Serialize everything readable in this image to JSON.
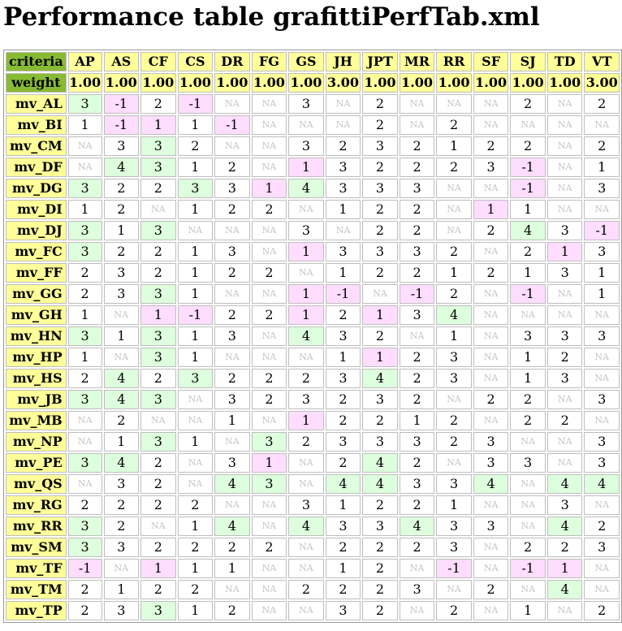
{
  "title": "Performance table grafittiPerfTab.xml",
  "table": {
    "criteria_label": "criteria",
    "weight_label": "weight",
    "criteria": [
      "AP",
      "AS",
      "CF",
      "CS",
      "DR",
      "FG",
      "GS",
      "JH",
      "JPT",
      "MR",
      "RR",
      "SF",
      "SJ",
      "TD",
      "VT"
    ],
    "weights": [
      "1.00",
      "1.00",
      "1.00",
      "1.00",
      "1.00",
      "1.00",
      "1.00",
      "3.00",
      "1.00",
      "1.00",
      "1.00",
      "1.00",
      "1.00",
      "1.00",
      "3.00"
    ],
    "rows": [
      {
        "label": "mv_AL",
        "values": [
          "3",
          "-1",
          "2",
          "-1",
          "NA",
          "NA",
          "3",
          "NA",
          "2",
          "NA",
          "NA",
          "NA",
          "2",
          "NA",
          "2"
        ]
      },
      {
        "label": "mv_BI",
        "values": [
          "1",
          "-1",
          "1",
          "1",
          "-1",
          "NA",
          "NA",
          "NA",
          "2",
          "NA",
          "2",
          "NA",
          "NA",
          "NA",
          "NA"
        ]
      },
      {
        "label": "mv_CM",
        "values": [
          "NA",
          "3",
          "3",
          "2",
          "NA",
          "NA",
          "3",
          "2",
          "3",
          "2",
          "1",
          "2",
          "2",
          "NA",
          "2"
        ]
      },
      {
        "label": "mv_DF",
        "values": [
          "NA",
          "4",
          "3",
          "1",
          "2",
          "NA",
          "1",
          "3",
          "2",
          "2",
          "2",
          "3",
          "-1",
          "NA",
          "1"
        ]
      },
      {
        "label": "mv_DG",
        "values": [
          "3",
          "2",
          "2",
          "3",
          "3",
          "1",
          "4",
          "3",
          "3",
          "3",
          "NA",
          "NA",
          "-1",
          "NA",
          "3"
        ]
      },
      {
        "label": "mv_DI",
        "values": [
          "1",
          "2",
          "NA",
          "1",
          "2",
          "2",
          "NA",
          "1",
          "2",
          "2",
          "NA",
          "1",
          "1",
          "NA",
          "NA"
        ]
      },
      {
        "label": "mv_DJ",
        "values": [
          "3",
          "1",
          "3",
          "NA",
          "NA",
          "NA",
          "3",
          "NA",
          "2",
          "2",
          "NA",
          "2",
          "4",
          "3",
          "-1"
        ]
      },
      {
        "label": "mv_FC",
        "values": [
          "3",
          "2",
          "2",
          "1",
          "3",
          "NA",
          "1",
          "3",
          "3",
          "3",
          "2",
          "NA",
          "2",
          "1",
          "3"
        ]
      },
      {
        "label": "mv_FF",
        "values": [
          "2",
          "3",
          "2",
          "1",
          "2",
          "2",
          "NA",
          "1",
          "2",
          "2",
          "1",
          "2",
          "1",
          "3",
          "1"
        ]
      },
      {
        "label": "mv_GG",
        "values": [
          "2",
          "3",
          "3",
          "1",
          "NA",
          "NA",
          "1",
          "-1",
          "NA",
          "-1",
          "2",
          "NA",
          "-1",
          "NA",
          "1"
        ]
      },
      {
        "label": "mv_GH",
        "values": [
          "1",
          "NA",
          "1",
          "-1",
          "2",
          "2",
          "1",
          "2",
          "1",
          "3",
          "4",
          "NA",
          "NA",
          "NA",
          "NA"
        ]
      },
      {
        "label": "mv_HN",
        "values": [
          "3",
          "1",
          "3",
          "1",
          "3",
          "NA",
          "4",
          "3",
          "2",
          "NA",
          "1",
          "NA",
          "3",
          "3",
          "3"
        ]
      },
      {
        "label": "mv_HP",
        "values": [
          "1",
          "NA",
          "3",
          "1",
          "NA",
          "NA",
          "NA",
          "1",
          "1",
          "2",
          "3",
          "NA",
          "1",
          "2",
          "NA"
        ]
      },
      {
        "label": "mv_HS",
        "values": [
          "2",
          "4",
          "2",
          "3",
          "2",
          "2",
          "2",
          "3",
          "4",
          "2",
          "3",
          "NA",
          "1",
          "3",
          "NA"
        ]
      },
      {
        "label": "mv_JB",
        "values": [
          "3",
          "4",
          "3",
          "NA",
          "3",
          "2",
          "3",
          "2",
          "3",
          "2",
          "NA",
          "2",
          "2",
          "NA",
          "3"
        ]
      },
      {
        "label": "mv_MB",
        "values": [
          "NA",
          "2",
          "NA",
          "NA",
          "1",
          "NA",
          "1",
          "2",
          "2",
          "1",
          "2",
          "NA",
          "2",
          "2",
          "NA"
        ]
      },
      {
        "label": "mv_NP",
        "values": [
          "NA",
          "1",
          "3",
          "1",
          "NA",
          "3",
          "2",
          "3",
          "3",
          "3",
          "2",
          "3",
          "NA",
          "NA",
          "3"
        ]
      },
      {
        "label": "mv_PE",
        "values": [
          "3",
          "4",
          "2",
          "NA",
          "3",
          "1",
          "NA",
          "2",
          "4",
          "2",
          "NA",
          "3",
          "3",
          "NA",
          "3"
        ]
      },
      {
        "label": "mv_QS",
        "values": [
          "NA",
          "3",
          "2",
          "NA",
          "4",
          "3",
          "NA",
          "4",
          "4",
          "3",
          "3",
          "4",
          "NA",
          "4",
          "4"
        ]
      },
      {
        "label": "mv_RG",
        "values": [
          "2",
          "2",
          "2",
          "2",
          "NA",
          "NA",
          "3",
          "1",
          "2",
          "2",
          "1",
          "NA",
          "NA",
          "3",
          "NA"
        ]
      },
      {
        "label": "mv_RR",
        "values": [
          "3",
          "2",
          "NA",
          "1",
          "4",
          "NA",
          "4",
          "3",
          "3",
          "4",
          "3",
          "3",
          "NA",
          "4",
          "2"
        ]
      },
      {
        "label": "mv_SM",
        "values": [
          "3",
          "3",
          "2",
          "2",
          "2",
          "2",
          "NA",
          "2",
          "2",
          "2",
          "3",
          "NA",
          "2",
          "2",
          "3"
        ]
      },
      {
        "label": "mv_TF",
        "values": [
          "-1",
          "NA",
          "1",
          "1",
          "1",
          "NA",
          "NA",
          "1",
          "2",
          "NA",
          "-1",
          "NA",
          "-1",
          "1",
          "NA"
        ]
      },
      {
        "label": "mv_TM",
        "values": [
          "2",
          "1",
          "2",
          "2",
          "NA",
          "NA",
          "2",
          "2",
          "2",
          "3",
          "NA",
          "2",
          "NA",
          "4",
          "NA"
        ]
      },
      {
        "label": "mv_TP",
        "values": [
          "2",
          "3",
          "3",
          "1",
          "2",
          "NA",
          "NA",
          "3",
          "2",
          "NA",
          "2",
          "NA",
          "1",
          "NA",
          "2"
        ]
      }
    ],
    "highlight": {
      "best": [
        [
          "mv_AL",
          "AP"
        ],
        [
          "mv_CM",
          "CF"
        ],
        [
          "mv_DF",
          "AS"
        ],
        [
          "mv_DF",
          "CF"
        ],
        [
          "mv_DG",
          "AP"
        ],
        [
          "mv_DG",
          "CS"
        ],
        [
          "mv_DG",
          "GS"
        ],
        [
          "mv_DJ",
          "AP"
        ],
        [
          "mv_DJ",
          "CF"
        ],
        [
          "mv_DJ",
          "SJ"
        ],
        [
          "mv_FC",
          "AP"
        ],
        [
          "mv_GG",
          "CF"
        ],
        [
          "mv_GH",
          "RR"
        ],
        [
          "mv_HN",
          "AP"
        ],
        [
          "mv_HN",
          "CF"
        ],
        [
          "mv_HN",
          "GS"
        ],
        [
          "mv_HP",
          "CF"
        ],
        [
          "mv_HS",
          "AS"
        ],
        [
          "mv_HS",
          "CS"
        ],
        [
          "mv_HS",
          "JPT"
        ],
        [
          "mv_JB",
          "AP"
        ],
        [
          "mv_JB",
          "AS"
        ],
        [
          "mv_JB",
          "CF"
        ],
        [
          "mv_NP",
          "CF"
        ],
        [
          "mv_NP",
          "FG"
        ],
        [
          "mv_PE",
          "AP"
        ],
        [
          "mv_PE",
          "AS"
        ],
        [
          "mv_PE",
          "JPT"
        ],
        [
          "mv_QS",
          "DR"
        ],
        [
          "mv_QS",
          "FG"
        ],
        [
          "mv_QS",
          "JH"
        ],
        [
          "mv_QS",
          "JPT"
        ],
        [
          "mv_QS",
          "SF"
        ],
        [
          "mv_QS",
          "TD"
        ],
        [
          "mv_QS",
          "VT"
        ],
        [
          "mv_RR",
          "AP"
        ],
        [
          "mv_RR",
          "DR"
        ],
        [
          "mv_RR",
          "GS"
        ],
        [
          "mv_RR",
          "MR"
        ],
        [
          "mv_RR",
          "TD"
        ],
        [
          "mv_SM",
          "AP"
        ],
        [
          "mv_TM",
          "TD"
        ],
        [
          "mv_TP",
          "CF"
        ]
      ],
      "worst": [
        [
          "mv_AL",
          "AS"
        ],
        [
          "mv_AL",
          "CS"
        ],
        [
          "mv_BI",
          "AS"
        ],
        [
          "mv_BI",
          "CF"
        ],
        [
          "mv_BI",
          "DR"
        ],
        [
          "mv_DF",
          "GS"
        ],
        [
          "mv_DF",
          "SJ"
        ],
        [
          "mv_DG",
          "FG"
        ],
        [
          "mv_DG",
          "SJ"
        ],
        [
          "mv_DI",
          "SF"
        ],
        [
          "mv_DJ",
          "VT"
        ],
        [
          "mv_FC",
          "GS"
        ],
        [
          "mv_FC",
          "TD"
        ],
        [
          "mv_GG",
          "GS"
        ],
        [
          "mv_GG",
          "JH"
        ],
        [
          "mv_GG",
          "MR"
        ],
        [
          "mv_GG",
          "SJ"
        ],
        [
          "mv_GH",
          "CF"
        ],
        [
          "mv_GH",
          "CS"
        ],
        [
          "mv_GH",
          "GS"
        ],
        [
          "mv_GH",
          "JPT"
        ],
        [
          "mv_HP",
          "JPT"
        ],
        [
          "mv_MB",
          "GS"
        ],
        [
          "mv_PE",
          "FG"
        ],
        [
          "mv_TF",
          "AP"
        ],
        [
          "mv_TF",
          "CF"
        ],
        [
          "mv_TF",
          "RR"
        ],
        [
          "mv_TF",
          "SJ"
        ],
        [
          "mv_TF",
          "TD"
        ]
      ]
    },
    "colors": {
      "header": "#ffff99",
      "label": "#88bb33",
      "best": "#ddffdd",
      "worst": "#ffddff",
      "na_text": "#c4c4c4"
    }
  }
}
